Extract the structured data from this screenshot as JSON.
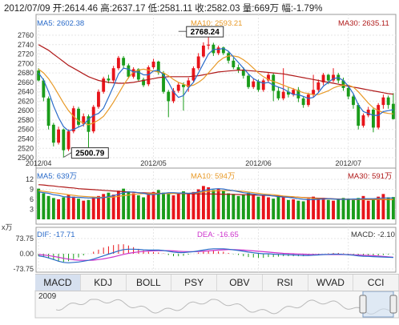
{
  "header": {
    "text": "2012/07/09 开:2614.46 高:2637.17 低:2581.11 收:2582.03 量:669万 幅:-1.79%"
  },
  "ma_labels": {
    "ma5": "MA5: 2602.38",
    "ma10": "MA10: 2593.21",
    "ma30": "MA30: 2635.11"
  },
  "vol_labels": {
    "ma5": "MA5: 639万",
    "ma10": "MA10: 594万",
    "ma30": "MA30: 591万"
  },
  "macd_labels": {
    "dif": "DIF: -17.71",
    "dea": "DEA: -16.65",
    "macd": "MACD: -2.10"
  },
  "tabs": [
    "MACD",
    "KDJ",
    "BOLL",
    "PSY",
    "OBV",
    "RSI",
    "WVAD",
    "CCI"
  ],
  "overview": {
    "year": "2009"
  },
  "colors": {
    "up": "#e8141a",
    "down": "#1a9c1a",
    "ma5": "#2a6bc9",
    "ma10": "#e89a28",
    "ma30": "#b01a1a",
    "dea": "#cc33cc"
  },
  "chart_data": [
    {
      "type": "candlestick",
      "title": "",
      "y_ticks": [
        2500,
        2520,
        2540,
        2560,
        2580,
        2600,
        2620,
        2640,
        2660,
        2680,
        2700,
        2720,
        2740,
        2760
      ],
      "ylim": [
        2495,
        2777
      ],
      "x_labels": [
        "2012/04",
        "2012/05",
        "2012/06",
        "2012/07"
      ],
      "x_label_index": [
        0,
        23,
        44,
        62
      ],
      "annotations": [
        {
          "text": "2768.24",
          "value": 2768.24,
          "index": 28
        },
        {
          "text": "2500.79",
          "value": 2500.79,
          "index": 5
        }
      ],
      "candles": [
        [
          2685,
          2664,
          2662,
          2690
        ],
        [
          2664,
          2628,
          2620,
          2668
        ],
        [
          2626,
          2568,
          2560,
          2630
        ],
        [
          2570,
          2532,
          2524,
          2574
        ],
        [
          2532,
          2560,
          2528,
          2566
        ],
        [
          2560,
          2516,
          2500.79,
          2562
        ],
        [
          2518,
          2556,
          2514,
          2560
        ],
        [
          2556,
          2605,
          2552,
          2610
        ],
        [
          2604,
          2570,
          2565,
          2608
        ],
        [
          2572,
          2588,
          2566,
          2594
        ],
        [
          2588,
          2555,
          2522,
          2592
        ],
        [
          2556,
          2608,
          2552,
          2612
        ],
        [
          2608,
          2640,
          2604,
          2645
        ],
        [
          2640,
          2668,
          2636,
          2672
        ],
        [
          2668,
          2664,
          2658,
          2676
        ],
        [
          2664,
          2690,
          2660,
          2695
        ],
        [
          2690,
          2712,
          2686,
          2716
        ],
        [
          2712,
          2696,
          2690,
          2716
        ],
        [
          2696,
          2672,
          2668,
          2700
        ],
        [
          2672,
          2688,
          2668,
          2692
        ],
        [
          2688,
          2666,
          2662,
          2690
        ],
        [
          2666,
          2654,
          2650,
          2670
        ],
        [
          2656,
          2692,
          2652,
          2696
        ],
        [
          2692,
          2704,
          2688,
          2710
        ],
        [
          2704,
          2681,
          2676,
          2706
        ],
        [
          2680,
          2640,
          2636,
          2684
        ],
        [
          2640,
          2620,
          2586,
          2644
        ],
        [
          2620,
          2642,
          2616,
          2648
        ],
        [
          2642,
          2655,
          2638,
          2660
        ],
        [
          2655,
          2650,
          2600,
          2660
        ],
        [
          2650,
          2664,
          2640,
          2670
        ],
        [
          2664,
          2690,
          2660,
          2694
        ],
        [
          2690,
          2715,
          2686,
          2722
        ],
        [
          2715,
          2738,
          2712,
          2745
        ],
        [
          2738,
          2740,
          2730,
          2768.24
        ],
        [
          2740,
          2722,
          2716,
          2744
        ],
        [
          2722,
          2734,
          2718,
          2738
        ],
        [
          2734,
          2722,
          2718,
          2736
        ],
        [
          2722,
          2706,
          2700,
          2726
        ],
        [
          2706,
          2692,
          2688,
          2712
        ],
        [
          2692,
          2686,
          2680,
          2698
        ],
        [
          2686,
          2674,
          2668,
          2692
        ],
        [
          2674,
          2650,
          2646,
          2678
        ],
        [
          2650,
          2662,
          2646,
          2668
        ],
        [
          2662,
          2644,
          2640,
          2666
        ],
        [
          2644,
          2664,
          2640,
          2668
        ],
        [
          2664,
          2676,
          2660,
          2680
        ],
        [
          2676,
          2642,
          2620,
          2680
        ],
        [
          2642,
          2626,
          2622,
          2650
        ],
        [
          2626,
          2640,
          2622,
          2690
        ],
        [
          2640,
          2634,
          2628,
          2650
        ],
        [
          2634,
          2644,
          2630,
          2648
        ],
        [
          2644,
          2626,
          2618,
          2650
        ],
        [
          2626,
          2612,
          2606,
          2630
        ],
        [
          2612,
          2634,
          2608,
          2638
        ],
        [
          2634,
          2644,
          2628,
          2676
        ],
        [
          2644,
          2660,
          2640,
          2666
        ],
        [
          2660,
          2676,
          2654,
          2680
        ],
        [
          2676,
          2664,
          2656,
          2678
        ],
        [
          2664,
          2676,
          2660,
          2690
        ],
        [
          2676,
          2664,
          2658,
          2680
        ],
        [
          2664,
          2648,
          2642,
          2670
        ],
        [
          2648,
          2630,
          2624,
          2652
        ],
        [
          2630,
          2612,
          2604,
          2634
        ],
        [
          2612,
          2568,
          2560,
          2616
        ],
        [
          2568,
          2590,
          2564,
          2594
        ],
        [
          2590,
          2602,
          2586,
          2608
        ],
        [
          2602,
          2564,
          2554,
          2606
        ],
        [
          2564,
          2612,
          2560,
          2616
        ],
        [
          2612,
          2628,
          2604,
          2634
        ],
        [
          2628,
          2612,
          2604,
          2632
        ],
        [
          2614.46,
          2582.03,
          2581.11,
          2637.17
        ]
      ],
      "ma5": [
        2680,
        2665,
        2640,
        2610,
        2585,
        2566,
        2557,
        2560,
        2565,
        2570,
        2582,
        2590,
        2594,
        2605,
        2628,
        2652,
        2678,
        2690,
        2688,
        2682,
        2682,
        2676,
        2676,
        2684,
        2686,
        2676,
        2660,
        2640,
        2628,
        2632,
        2648,
        2660,
        2680,
        2700,
        2720,
        2730,
        2730,
        2732,
        2726,
        2714,
        2702,
        2690,
        2678,
        2668,
        2662,
        2658,
        2660,
        2654,
        2650,
        2646,
        2640,
        2634,
        2634,
        2630,
        2626,
        2628,
        2638,
        2652,
        2660,
        2668,
        2670,
        2664,
        2652,
        2636,
        2612,
        2598,
        2594,
        2590,
        2590,
        2598,
        2600,
        2602
      ],
      "ma10": [
        2688,
        2680,
        2668,
        2652,
        2634,
        2616,
        2600,
        2588,
        2578,
        2574,
        2570,
        2574,
        2580,
        2588,
        2602,
        2618,
        2636,
        2654,
        2670,
        2682,
        2686,
        2688,
        2686,
        2684,
        2682,
        2680,
        2674,
        2666,
        2660,
        2656,
        2652,
        2654,
        2660,
        2668,
        2680,
        2692,
        2704,
        2712,
        2716,
        2716,
        2714,
        2708,
        2700,
        2690,
        2680,
        2672,
        2666,
        2662,
        2658,
        2654,
        2650,
        2646,
        2642,
        2638,
        2636,
        2634,
        2634,
        2638,
        2642,
        2648,
        2652,
        2654,
        2654,
        2650,
        2640,
        2628,
        2616,
        2606,
        2600,
        2596,
        2594,
        2593
      ],
      "ma30": [
        2740,
        2734,
        2728,
        2720,
        2712,
        2704,
        2696,
        2690,
        2684,
        2678,
        2672,
        2668,
        2664,
        2662,
        2660,
        2659,
        2658,
        2658,
        2659,
        2660,
        2662,
        2664,
        2666,
        2668,
        2670,
        2671,
        2672,
        2672,
        2672,
        2672,
        2672,
        2673,
        2674,
        2676,
        2678,
        2680,
        2682,
        2683,
        2684,
        2685,
        2686,
        2686,
        2685,
        2684,
        2683,
        2682,
        2681,
        2680,
        2679,
        2678,
        2676,
        2674,
        2672,
        2670,
        2668,
        2666,
        2664,
        2662,
        2660,
        2658,
        2656,
        2654,
        2652,
        2650,
        2648,
        2646,
        2644,
        2642,
        2640,
        2638,
        2636,
        2635
      ]
    },
    {
      "type": "bar",
      "title": "volume",
      "y_ticks": [
        3,
        6,
        9,
        12
      ],
      "ylim": [
        0,
        12
      ],
      "unit": "x万",
      "volumes": [
        9.2,
        7.8,
        7.0,
        6.4,
        6.0,
        6.6,
        7.4,
        6.8,
        6.2,
        5.6,
        5.8,
        6.6,
        7.0,
        7.6,
        8.0,
        7.4,
        8.6,
        9.2,
        8.4,
        7.8,
        7.2,
        6.6,
        7.4,
        8.2,
        8.8,
        8.0,
        7.6,
        7.2,
        7.8,
        8.4,
        7.6,
        8.2,
        9.0,
        10.0,
        9.6,
        8.8,
        9.2,
        8.6,
        7.8,
        7.6,
        7.0,
        7.4,
        8.0,
        7.2,
        6.8,
        7.4,
        6.6,
        6.2,
        7.0,
        6.6,
        5.8,
        6.0,
        5.6,
        5.4,
        6.2,
        6.8,
        6.0,
        6.4,
        5.8,
        5.6,
        6.0,
        6.4,
        6.2,
        5.8,
        6.4,
        7.0,
        5.6,
        6.2,
        6.8,
        7.6,
        6.6,
        6.69
      ],
      "ma5": [
        8.2,
        8.0,
        7.8,
        7.4,
        7.2,
        6.8,
        6.7,
        6.6,
        6.6,
        6.5,
        6.4,
        6.4,
        6.4,
        6.5,
        6.8,
        7.1,
        7.5,
        8.0,
        8.2,
        8.2,
        8.0,
        7.8,
        7.5,
        7.4,
        7.6,
        7.8,
        8.0,
        8.0,
        7.9,
        7.9,
        7.8,
        7.9,
        8.2,
        8.6,
        8.9,
        9.1,
        9.2,
        9.1,
        8.8,
        8.6,
        8.3,
        8.0,
        7.8,
        7.6,
        7.4,
        7.3,
        7.2,
        7.0,
        6.8,
        6.7,
        6.6,
        6.4,
        6.2,
        6.0,
        5.9,
        5.9,
        6.0,
        6.1,
        6.2,
        6.1,
        6.0,
        6.0,
        6.0,
        6.1,
        6.1,
        6.2,
        6.2,
        6.2,
        6.3,
        6.4,
        6.4,
        6.39
      ],
      "ma10": [
        8.6,
        8.4,
        8.2,
        8.0,
        7.8,
        7.6,
        7.4,
        7.2,
        7.0,
        6.9,
        6.8,
        6.7,
        6.6,
        6.6,
        6.6,
        6.7,
        6.9,
        7.1,
        7.3,
        7.5,
        7.6,
        7.7,
        7.7,
        7.7,
        7.7,
        7.7,
        7.7,
        7.7,
        7.8,
        7.8,
        7.8,
        7.9,
        8.0,
        8.2,
        8.4,
        8.5,
        8.6,
        8.6,
        8.6,
        8.6,
        8.5,
        8.4,
        8.2,
        8.0,
        7.8,
        7.6,
        7.5,
        7.4,
        7.2,
        7.0,
        6.9,
        6.8,
        6.6,
        6.5,
        6.4,
        6.3,
        6.2,
        6.1,
        6.1,
        6.1,
        6.0,
        6.0,
        6.0,
        6.0,
        6.0,
        6.0,
        6.0,
        6.0,
        6.0,
        6.0,
        5.96,
        5.94
      ],
      "ma30": [
        10.4,
        10.3,
        10.1,
        10.0,
        9.8,
        9.7,
        9.5,
        9.4,
        9.2,
        9.1,
        9.0,
        8.9,
        8.8,
        8.7,
        8.6,
        8.5,
        8.4,
        8.3,
        8.2,
        8.1,
        8.0,
        7.95,
        7.9,
        7.85,
        7.8,
        7.78,
        7.76,
        7.74,
        7.72,
        7.7,
        7.68,
        7.66,
        7.64,
        7.62,
        7.6,
        7.58,
        7.56,
        7.54,
        7.52,
        7.5,
        7.45,
        7.4,
        7.35,
        7.3,
        7.25,
        7.2,
        7.12,
        7.04,
        6.96,
        6.88,
        6.8,
        6.72,
        6.64,
        6.56,
        6.48,
        6.4,
        6.34,
        6.28,
        6.22,
        6.16,
        6.1,
        6.06,
        6.02,
        5.98,
        5.96,
        5.94,
        5.93,
        5.92,
        5.92,
        5.91,
        5.91,
        5.91
      ]
    },
    {
      "type": "macd",
      "title": "MACD",
      "y_ticks": [
        73.75,
        0.0,
        -73.75
      ],
      "y_tick_labels": [
        "73.75",
        "0.00",
        "-73.75"
      ],
      "ylim": [
        -73.75,
        73.75
      ],
      "dif": [
        -10,
        -14,
        -20,
        -28,
        -36,
        -42,
        -44,
        -42,
        -40,
        -36,
        -32,
        -26,
        -18,
        -10,
        -2,
        6,
        14,
        20,
        22,
        22,
        21,
        19,
        18,
        18,
        18,
        16,
        12,
        8,
        6,
        6,
        8,
        10,
        14,
        18,
        22,
        24,
        24,
        24,
        22,
        19,
        16,
        12,
        8,
        5,
        2,
        0,
        0,
        -2,
        -3,
        -4,
        -5,
        -6,
        -7,
        -8,
        -8,
        -7,
        -6,
        -4,
        -3,
        -2,
        -2,
        -3,
        -5,
        -7,
        -10,
        -12,
        -13,
        -14,
        -15,
        -16,
        -17,
        -17.71
      ],
      "dea": [
        -4,
        -6,
        -9,
        -13,
        -17,
        -22,
        -26,
        -29,
        -31,
        -32,
        -32,
        -31,
        -28,
        -25,
        -20,
        -15,
        -9,
        -3,
        2,
        6,
        9,
        11,
        13,
        14,
        15,
        15,
        15,
        14,
        12,
        11,
        10,
        10,
        11,
        12,
        14,
        16,
        18,
        19,
        20,
        20,
        19,
        18,
        16,
        14,
        12,
        10,
        8,
        6,
        4,
        2,
        1,
        0,
        -1,
        -2,
        -3,
        -4,
        -4,
        -4,
        -4,
        -4,
        -4,
        -4,
        -4,
        -5,
        -6,
        -7,
        -8,
        -9,
        -11,
        -13,
        -15,
        -16.65
      ],
      "macd": [
        -12,
        -16,
        -22,
        -30,
        -38,
        -40,
        -36,
        -26,
        -18,
        -8,
        0,
        10,
        20,
        30,
        36,
        42,
        46,
        46,
        40,
        32,
        24,
        16,
        10,
        8,
        6,
        2,
        -6,
        -12,
        -12,
        -10,
        -4,
        0,
        6,
        12,
        16,
        16,
        12,
        10,
        4,
        -2,
        -6,
        -12,
        -16,
        -18,
        -20,
        -20,
        -16,
        -16,
        -14,
        -12,
        -12,
        -12,
        -12,
        -12,
        -10,
        -6,
        -4,
        0,
        2,
        4,
        4,
        2,
        -2,
        -4,
        -8,
        -10,
        -10,
        -10,
        -8,
        -6,
        -4,
        -2.1
      ]
    }
  ]
}
